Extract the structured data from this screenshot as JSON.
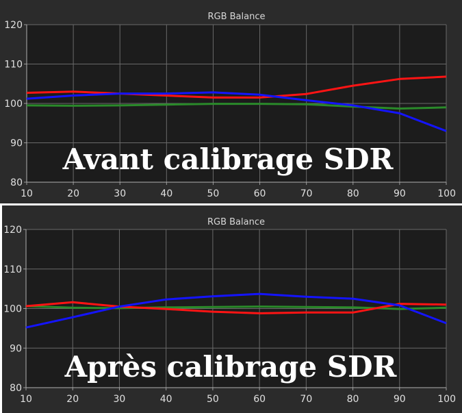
{
  "chart_data": [
    {
      "type": "line",
      "title": "RGB Balance",
      "overlay_label": "Avant calibrage SDR",
      "x": [
        10,
        20,
        30,
        40,
        50,
        60,
        70,
        80,
        90,
        100
      ],
      "xlim": [
        10,
        100
      ],
      "ylim": [
        80,
        120
      ],
      "yticks": [
        80,
        90,
        100,
        110,
        120
      ],
      "grid": true,
      "series": [
        {
          "color": "#2a8a2a",
          "values": [
            99.5,
            99.4,
            99.5,
            99.7,
            99.9,
            99.9,
            99.8,
            99.2,
            98.7,
            99.0
          ]
        },
        {
          "color": "#ff1414",
          "values": [
            102.7,
            103.0,
            102.5,
            102.0,
            101.5,
            101.5,
            102.4,
            104.5,
            106.2,
            106.8
          ]
        },
        {
          "color": "#1414ff",
          "values": [
            101.2,
            102.0,
            102.5,
            102.5,
            102.8,
            102.2,
            100.8,
            99.5,
            97.5,
            93.0
          ]
        }
      ]
    },
    {
      "type": "line",
      "title": "RGB Balance",
      "overlay_label": "Après calibrage SDR",
      "x": [
        10,
        20,
        30,
        40,
        50,
        60,
        70,
        80,
        90,
        100
      ],
      "xlim": [
        10,
        100
      ],
      "ylim": [
        80,
        120
      ],
      "yticks": [
        80,
        90,
        100,
        110,
        120
      ],
      "grid": true,
      "series": [
        {
          "color": "#2a8a2a",
          "values": [
            100.6,
            100.2,
            100.1,
            100.3,
            100.4,
            100.5,
            100.4,
            100.3,
            99.9,
            100.2
          ]
        },
        {
          "color": "#ff1414",
          "values": [
            100.6,
            101.6,
            100.5,
            99.9,
            99.2,
            98.8,
            99.0,
            99.0,
            101.2,
            101.0
          ]
        },
        {
          "color": "#1414ff",
          "values": [
            95.2,
            97.8,
            100.5,
            102.3,
            103.1,
            103.7,
            103.0,
            102.5,
            100.8,
            96.3
          ]
        }
      ]
    }
  ]
}
